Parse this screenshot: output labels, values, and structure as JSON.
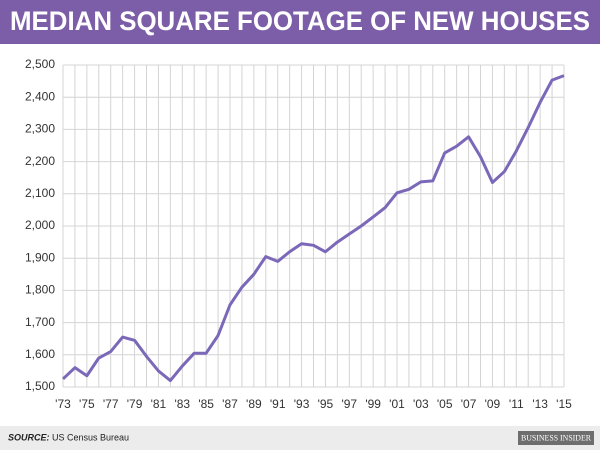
{
  "chart_data": {
    "type": "line",
    "title": "MEDIAN SQUARE FOOTAGE OF NEW HOUSES",
    "categories": [
      "'73",
      null,
      "'75",
      null,
      "'77",
      null,
      "'79",
      null,
      "'81",
      null,
      "'83",
      null,
      "'85",
      null,
      "'87",
      null,
      "'89",
      null,
      "'91",
      null,
      "'93",
      null,
      "'95",
      null,
      "'97",
      null,
      "'99",
      null,
      "'01",
      null,
      "'03",
      null,
      "'05",
      null,
      "'07",
      null,
      "'09",
      null,
      "'11",
      null,
      "'13",
      null,
      "'15"
    ],
    "values": [
      1525,
      1560,
      1535,
      1590,
      1610,
      1655,
      1645,
      1595,
      1550,
      1520,
      1565,
      1605,
      1605,
      1660,
      1755,
      1810,
      1850,
      1905,
      1890,
      1920,
      1945,
      1940,
      1920,
      1950,
      1975,
      2000,
      2028,
      2057,
      2103,
      2114,
      2137,
      2140,
      2227,
      2248,
      2277,
      2215,
      2135,
      2169,
      2233,
      2306,
      2384,
      2453,
      2467
    ],
    "color": "#7b68b8",
    "ylim": [
      1500,
      2500
    ],
    "yticks": [
      {
        "value": 1500,
        "label": "1,500"
      },
      {
        "value": 1600,
        "label": "1,600"
      },
      {
        "value": 1700,
        "label": "1,700"
      },
      {
        "value": 1800,
        "label": "1,800"
      },
      {
        "value": 1900,
        "label": "1,900"
      },
      {
        "value": 2000,
        "label": "2,000"
      },
      {
        "value": 2100,
        "label": "2,100"
      },
      {
        "value": 2200,
        "label": "2,200"
      },
      {
        "value": 2300,
        "label": "2,300"
      },
      {
        "value": 2400,
        "label": "2,400"
      },
      {
        "value": 2500,
        "label": "2,500"
      }
    ],
    "grid": true,
    "source_label": "SOURCE:",
    "source": "US Census Bureau",
    "brand": "BUSINESS INSIDER"
  }
}
